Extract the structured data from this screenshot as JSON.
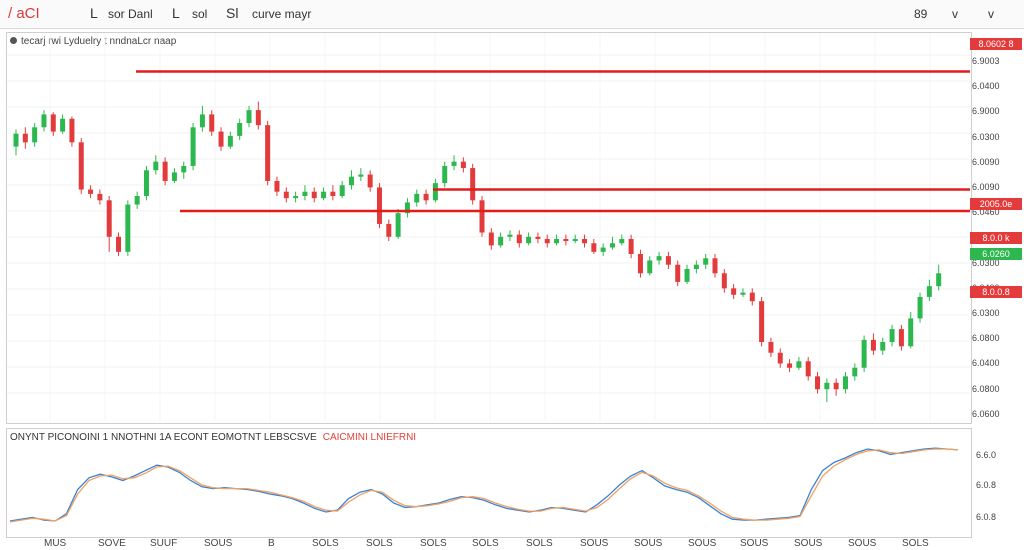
{
  "toolbar": {
    "symbol": "/ aCI",
    "item_1": "L",
    "item_2": "sor Danl",
    "item_3": "L",
    "item_4": "sol",
    "item_5": "Sl",
    "item_6": "curve mayr",
    "right_1": "89",
    "right_2": "v",
    "right_3": "v"
  },
  "main_legend": "tecarj  rwi Lyduelry  t nndnaLcr naap",
  "indicator_legend": {
    "main": "ONYNT  PICONOINI  1 NNOTHNI  1A ECONT  EOMOTNT  LEBSCSVE",
    "highlight": "CAICMINI  LNIEFRNI"
  },
  "price_axis": [
    "6.9003",
    "6.0400",
    "6.9000",
    "6.0300",
    "6.0090",
    "6.0090",
    "6.0460",
    "6.0800",
    "6.0300",
    "6.0400",
    "6.0300",
    "6.0800",
    "6.0400",
    "6.0800",
    "6.0600"
  ],
  "price_tags": [
    {
      "label": "8.0602 8",
      "color": "red"
    },
    {
      "label": "2005.0e",
      "color": "red"
    },
    {
      "label": "8.0.0 k",
      "color": "red"
    },
    {
      "label": "6.0260",
      "color": "green"
    },
    {
      "label": "8.0.0.8",
      "color": "red"
    }
  ],
  "indicator_axis": [
    "6.6.0",
    "6.0.8",
    "6.0.8"
  ],
  "time_axis": [
    "MUS",
    "SOVE",
    "SUUF",
    "SOUS",
    "B",
    "SOLS",
    "SOLS",
    "SOLS",
    "SOLS",
    "SOLS",
    "SOUS",
    "SOUS",
    "SOUS",
    "SOUS",
    "SOUS",
    "SOUS",
    "SOLS"
  ],
  "colors": {
    "up": "#2db84f",
    "down": "#e33b3b",
    "level": "#e31b1b",
    "line1": "#3b82d6",
    "line2": "#f0a060"
  },
  "chart_data": {
    "type": "candlestick",
    "candles": [
      [
        6.045,
        6.051,
        6.053,
        6.041
      ],
      [
        6.051,
        6.047,
        6.054,
        6.044
      ],
      [
        6.047,
        6.054,
        6.056,
        6.045
      ],
      [
        6.054,
        6.06,
        6.062,
        6.052
      ],
      [
        6.06,
        6.052,
        6.061,
        6.05
      ],
      [
        6.052,
        6.058,
        6.06,
        6.051
      ],
      [
        6.058,
        6.047,
        6.059,
        6.045
      ],
      [
        6.047,
        6.025,
        6.049,
        6.023
      ],
      [
        6.025,
        6.023,
        6.027,
        6.021
      ],
      [
        6.023,
        6.02,
        6.025,
        6.018
      ],
      [
        6.02,
        6.003,
        6.022,
        5.996
      ],
      [
        6.003,
        5.996,
        6.005,
        5.994
      ],
      [
        5.996,
        6.018,
        6.02,
        5.994
      ],
      [
        6.018,
        6.022,
        6.024,
        6.016
      ],
      [
        6.022,
        6.034,
        6.036,
        6.02
      ],
      [
        6.034,
        6.038,
        6.041,
        6.032
      ],
      [
        6.038,
        6.029,
        6.04,
        6.027
      ],
      [
        6.029,
        6.033,
        6.035,
        6.028
      ],
      [
        6.033,
        6.036,
        6.038,
        6.03
      ],
      [
        6.036,
        6.054,
        6.056,
        6.034
      ],
      [
        6.054,
        6.06,
        6.064,
        6.052
      ],
      [
        6.06,
        6.052,
        6.062,
        6.05
      ],
      [
        6.052,
        6.045,
        6.054,
        6.043
      ],
      [
        6.045,
        6.05,
        6.052,
        6.044
      ],
      [
        6.05,
        6.056,
        6.058,
        6.048
      ],
      [
        6.056,
        6.062,
        6.064,
        6.054
      ],
      [
        6.062,
        6.055,
        6.066,
        6.053
      ],
      [
        6.055,
        6.029,
        6.057,
        6.027
      ],
      [
        6.029,
        6.024,
        6.031,
        6.022
      ],
      [
        6.024,
        6.021,
        6.026,
        6.019
      ],
      [
        6.021,
        6.022,
        6.024,
        6.019
      ],
      [
        6.022,
        6.024,
        6.027,
        6.02
      ],
      [
        6.024,
        6.021,
        6.026,
        6.019
      ],
      [
        6.021,
        6.024,
        6.026,
        6.02
      ],
      [
        6.024,
        6.022,
        6.027,
        6.02
      ],
      [
        6.022,
        6.027,
        6.029,
        6.021
      ],
      [
        6.027,
        6.031,
        6.034,
        6.025
      ],
      [
        6.031,
        6.032,
        6.035,
        6.029
      ],
      [
        6.032,
        6.026,
        6.034,
        6.024
      ],
      [
        6.026,
        6.009,
        6.028,
        6.007
      ],
      [
        6.009,
        6.003,
        6.011,
        6.001
      ],
      [
        6.003,
        6.014,
        6.016,
        6.002
      ],
      [
        6.014,
        6.019,
        6.021,
        6.012
      ],
      [
        6.019,
        6.023,
        6.025,
        6.017
      ],
      [
        6.023,
        6.02,
        6.025,
        6.018
      ],
      [
        6.02,
        6.028,
        6.03,
        6.019
      ],
      [
        6.028,
        6.036,
        6.038,
        6.026
      ],
      [
        6.036,
        6.038,
        6.041,
        6.034
      ],
      [
        6.038,
        6.035,
        6.04,
        6.033
      ],
      [
        6.035,
        6.02,
        6.037,
        6.018
      ],
      [
        6.02,
        6.005,
        6.022,
        6.003
      ],
      [
        6.005,
        5.999,
        6.007,
        5.997
      ],
      [
        5.999,
        6.003,
        6.005,
        5.998
      ],
      [
        6.003,
        6.004,
        6.006,
        6.001
      ],
      [
        6.004,
        6.0,
        6.006,
        5.998
      ],
      [
        6.0,
        6.003,
        6.005,
        5.999
      ],
      [
        6.003,
        6.002,
        6.005,
        6.0
      ],
      [
        6.002,
        6.0,
        6.004,
        5.998
      ],
      [
        6.0,
        6.002,
        6.004,
        5.999
      ],
      [
        6.002,
        6.001,
        6.004,
        5.999
      ],
      [
        6.001,
        6.002,
        6.004,
        6.0
      ],
      [
        6.002,
        6.0,
        6.004,
        5.998
      ],
      [
        6.0,
        5.996,
        6.002,
        5.995
      ],
      [
        5.996,
        5.998,
        6.0,
        5.994
      ],
      [
        5.998,
        6.0,
        6.003,
        5.997
      ],
      [
        6.0,
        6.002,
        6.004,
        5.999
      ],
      [
        6.002,
        5.995,
        6.004,
        5.993
      ],
      [
        5.995,
        5.986,
        5.997,
        5.984
      ],
      [
        5.986,
        5.992,
        5.994,
        5.985
      ],
      [
        5.992,
        5.994,
        5.996,
        5.99
      ],
      [
        5.994,
        5.99,
        5.996,
        5.988
      ],
      [
        5.99,
        5.982,
        5.992,
        5.98
      ],
      [
        5.982,
        5.988,
        5.99,
        5.981
      ],
      [
        5.988,
        5.99,
        5.992,
        5.986
      ],
      [
        5.99,
        5.993,
        5.995,
        5.988
      ],
      [
        5.993,
        5.986,
        5.995,
        5.984
      ],
      [
        5.986,
        5.979,
        5.988,
        5.977
      ],
      [
        5.979,
        5.976,
        5.981,
        5.974
      ],
      [
        5.976,
        5.977,
        5.979,
        5.975
      ],
      [
        5.977,
        5.973,
        5.979,
        5.971
      ],
      [
        5.973,
        5.954,
        5.975,
        5.952
      ],
      [
        5.954,
        5.949,
        5.956,
        5.947
      ],
      [
        5.949,
        5.944,
        5.951,
        5.942
      ],
      [
        5.944,
        5.942,
        5.946,
        5.94
      ],
      [
        5.942,
        5.945,
        5.947,
        5.941
      ],
      [
        5.945,
        5.938,
        5.947,
        5.936
      ],
      [
        5.938,
        5.932,
        5.94,
        5.93
      ],
      [
        5.932,
        5.935,
        5.937,
        5.926
      ],
      [
        5.935,
        5.932,
        5.937,
        5.929
      ],
      [
        5.932,
        5.938,
        5.94,
        5.93
      ],
      [
        5.938,
        5.942,
        5.944,
        5.936
      ],
      [
        5.942,
        5.955,
        5.957,
        5.94
      ],
      [
        5.955,
        5.95,
        5.958,
        5.948
      ],
      [
        5.95,
        5.954,
        5.956,
        5.948
      ],
      [
        5.954,
        5.96,
        5.962,
        5.952
      ],
      [
        5.96,
        5.952,
        5.962,
        5.95
      ],
      [
        5.952,
        5.965,
        5.968,
        5.951
      ],
      [
        5.965,
        5.975,
        5.977,
        5.963
      ],
      [
        5.975,
        5.98,
        5.983,
        5.973
      ],
      [
        5.98,
        5.986,
        5.99,
        5.978
      ]
    ],
    "levels": [
      6.08,
      6.025,
      6.015
    ],
    "ylim": [
      5.92,
      6.09
    ],
    "indicator": {
      "type": "line",
      "series": [
        {
          "values": [
            0.1,
            0.12,
            0.14,
            0.11,
            0.1,
            0.18,
            0.45,
            0.58,
            0.62,
            0.59,
            0.55,
            0.6,
            0.66,
            0.72,
            0.7,
            0.64,
            0.55,
            0.48,
            0.46,
            0.47,
            0.46,
            0.45,
            0.43,
            0.4,
            0.38,
            0.35,
            0.3,
            0.24,
            0.2,
            0.22,
            0.35,
            0.42,
            0.45,
            0.4,
            0.3,
            0.25,
            0.26,
            0.28,
            0.3,
            0.34,
            0.37,
            0.36,
            0.33,
            0.28,
            0.24,
            0.22,
            0.2,
            0.22,
            0.25,
            0.24,
            0.22,
            0.2,
            0.28,
            0.38,
            0.5,
            0.6,
            0.66,
            0.58,
            0.49,
            0.45,
            0.42,
            0.36,
            0.27,
            0.18,
            0.12,
            0.11,
            0.11,
            0.12,
            0.13,
            0.14,
            0.16,
            0.45,
            0.66,
            0.75,
            0.8,
            0.86,
            0.9,
            0.88,
            0.84,
            0.86,
            0.88,
            0.9,
            0.91,
            0.9,
            0.89
          ]
        },
        {
          "values": [
            0.09,
            0.11,
            0.13,
            0.12,
            0.1,
            0.16,
            0.4,
            0.55,
            0.6,
            0.61,
            0.57,
            0.58,
            0.63,
            0.7,
            0.71,
            0.66,
            0.58,
            0.5,
            0.47,
            0.46,
            0.46,
            0.46,
            0.44,
            0.42,
            0.39,
            0.36,
            0.32,
            0.26,
            0.22,
            0.21,
            0.31,
            0.39,
            0.44,
            0.42,
            0.33,
            0.27,
            0.26,
            0.27,
            0.29,
            0.32,
            0.36,
            0.37,
            0.35,
            0.3,
            0.26,
            0.23,
            0.21,
            0.21,
            0.24,
            0.25,
            0.23,
            0.21,
            0.25,
            0.34,
            0.46,
            0.57,
            0.64,
            0.6,
            0.52,
            0.47,
            0.44,
            0.38,
            0.3,
            0.21,
            0.14,
            0.12,
            0.11,
            0.11,
            0.12,
            0.13,
            0.15,
            0.38,
            0.6,
            0.71,
            0.78,
            0.84,
            0.88,
            0.89,
            0.86,
            0.85,
            0.87,
            0.89,
            0.9,
            0.9,
            0.89
          ]
        }
      ]
    }
  }
}
